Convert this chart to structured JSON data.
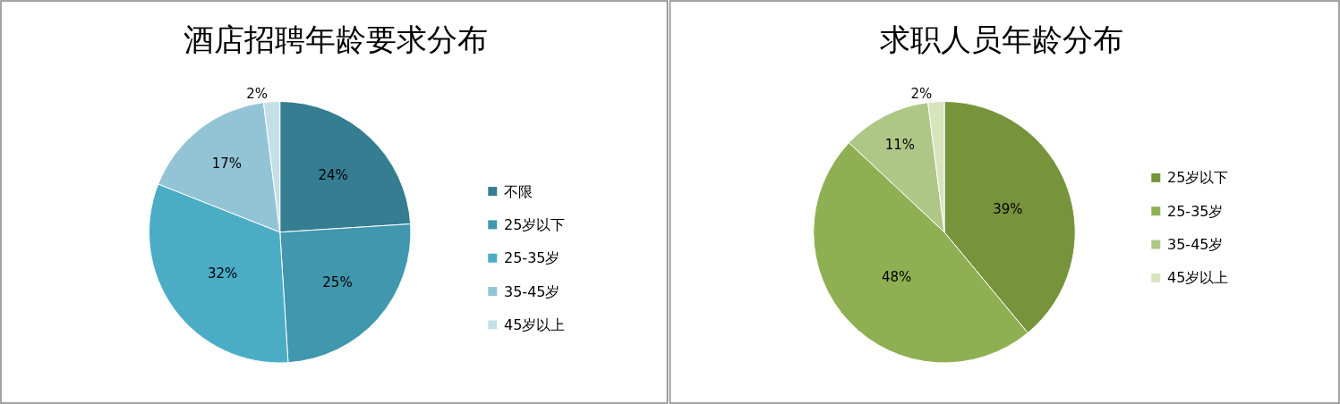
{
  "chart_data": [
    {
      "type": "pie",
      "title": "酒店招聘年龄要求分布",
      "categories": [
        "不限",
        "25岁以下",
        "25-35岁",
        "35-45岁",
        "45岁以上"
      ],
      "values": [
        24,
        25,
        32,
        17,
        2
      ],
      "value_labels": [
        "24%",
        "25%",
        "32%",
        "17%",
        "2%"
      ],
      "colors": [
        "#357d91",
        "#4097ae",
        "#4bacc6",
        "#93c4d6",
        "#c5dfe8"
      ],
      "legend": "right"
    },
    {
      "type": "pie",
      "title": "求职人员年龄分布",
      "categories": [
        "25岁以下",
        "25-35岁",
        "35-45岁",
        "45岁以上"
      ],
      "values": [
        39,
        48,
        11,
        2
      ],
      "value_labels": [
        "39%",
        "48%",
        "11%",
        "2%"
      ],
      "colors": [
        "#77933c",
        "#8fb052",
        "#afc786",
        "#d7e4bc"
      ],
      "legend": "right"
    }
  ]
}
